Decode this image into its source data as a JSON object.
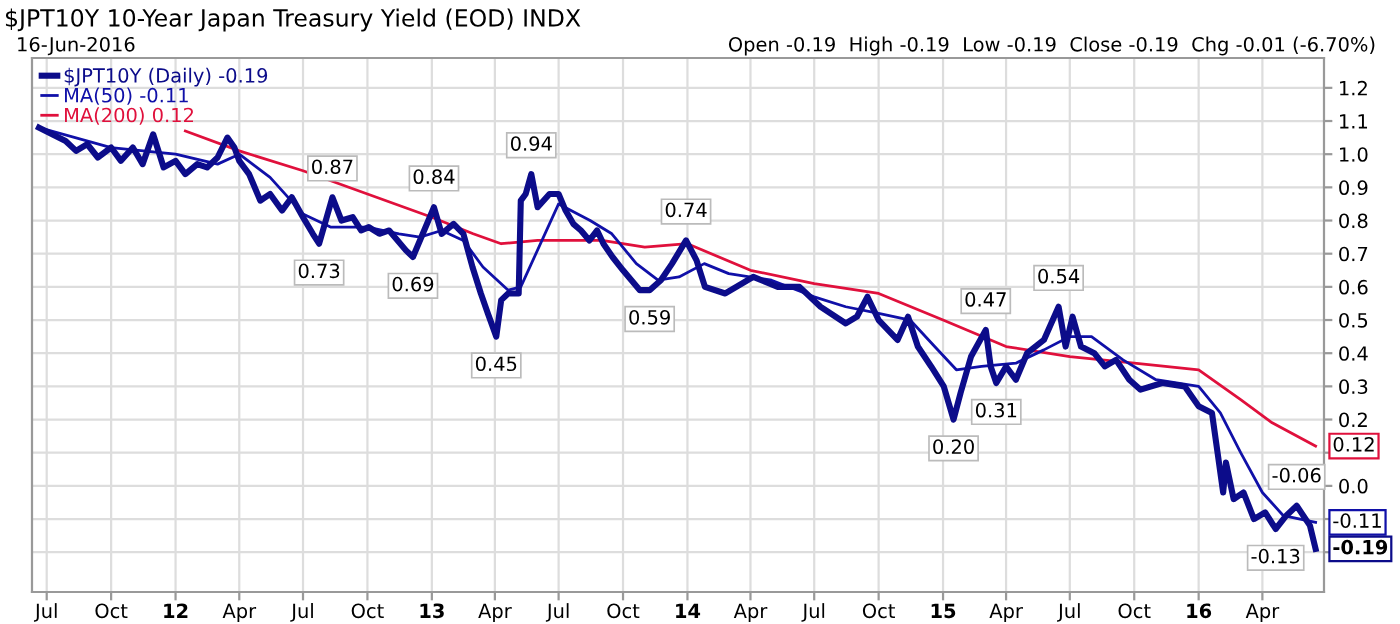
{
  "chart_data": {
    "type": "line",
    "title": "$JPT10Y 10-Year Japan Treasury Yield (EOD) INDX",
    "subtitle": "16-Jun-2016",
    "annotations": [
      "Open -0.19  High -0.19  Low -0.19  Close -0.19  Chg -0.01 (-6.70%)",
      {
        "text": "0.73",
        "x": "2012-07-24",
        "y": 0.73
      },
      {
        "text": "0.87",
        "x": "2012-08-12",
        "y": 0.87
      },
      {
        "text": "0.69",
        "x": "2012-12-05",
        "y": 0.69
      },
      {
        "text": "0.84",
        "x": "2013-01-04",
        "y": 0.84
      },
      {
        "text": "0.45",
        "x": "2013-04-03",
        "y": 0.45
      },
      {
        "text": "0.94",
        "x": "2013-05-23",
        "y": 0.94
      },
      {
        "text": "0.59",
        "x": "2013-11-08",
        "y": 0.59
      },
      {
        "text": "0.74",
        "x": "2013-12-30",
        "y": 0.74
      },
      {
        "text": "0.20",
        "x": "2015-01-16",
        "y": 0.2
      },
      {
        "text": "0.47",
        "x": "2015-03-03",
        "y": 0.47
      },
      {
        "text": "0.31",
        "x": "2015-03-18",
        "y": 0.31
      },
      {
        "text": "0.54",
        "x": "2015-06-15",
        "y": 0.54
      },
      {
        "text": "-0.13",
        "x": "2016-04-20",
        "y": -0.13
      },
      {
        "text": "-0.06",
        "x": "2016-05-20",
        "y": -0.06
      },
      {
        "text": "0.12",
        "x": "2016-06-16",
        "y": 0.12
      },
      {
        "text": "-0.11",
        "x": "2016-06-16",
        "y": -0.11
      },
      {
        "text": "-0.19",
        "x": "2016-06-16",
        "y": -0.19
      }
    ],
    "series": [
      {
        "name": "$JPT10Y (Daily) -0.19",
        "color": "#0c0c8a",
        "x": [
          "2011-06-20",
          "2011-07-28",
          "2011-08-12",
          "2011-08-28",
          "2011-09-12",
          "2011-10-01",
          "2011-10-15",
          "2011-11-01",
          "2011-11-15",
          "2011-11-30",
          "2011-12-15",
          "2012-01-01",
          "2012-01-15",
          "2012-02-01",
          "2012-02-15",
          "2012-03-01",
          "2012-03-15",
          "2012-03-25",
          "2012-04-01",
          "2012-04-15",
          "2012-05-01",
          "2012-05-15",
          "2012-06-01",
          "2012-06-15",
          "2012-07-01",
          "2012-07-15",
          "2012-07-24",
          "2012-08-12",
          "2012-08-25",
          "2012-09-10",
          "2012-09-22",
          "2012-10-03",
          "2012-10-18",
          "2012-11-01",
          "2012-11-25",
          "2012-12-05",
          "2013-01-04",
          "2013-01-15",
          "2013-02-01",
          "2013-02-15",
          "2013-02-28",
          "2013-03-12",
          "2013-03-22",
          "2013-04-03",
          "2013-04-10",
          "2013-04-20",
          "2013-05-05",
          "2013-05-08",
          "2013-05-15",
          "2013-05-23",
          "2013-06-01",
          "2013-06-18",
          "2013-07-01",
          "2013-07-11",
          "2013-07-22",
          "2013-08-02",
          "2013-08-14",
          "2013-08-25",
          "2013-09-03",
          "2013-09-16",
          "2013-10-01",
          "2013-10-13",
          "2013-10-25",
          "2013-11-08",
          "2013-11-24",
          "2013-12-10",
          "2013-12-30",
          "2014-01-14",
          "2014-01-26",
          "2014-02-24",
          "2014-04-05",
          "2014-05-10",
          "2014-06-10",
          "2014-07-10",
          "2014-08-15",
          "2014-08-31",
          "2014-09-15",
          "2014-10-01",
          "2014-10-28",
          "2014-11-12",
          "2014-11-26",
          "2014-12-15",
          "2015-01-02",
          "2015-01-16",
          "2015-01-26",
          "2015-02-10",
          "2015-03-03",
          "2015-03-10",
          "2015-03-18",
          "2015-04-01",
          "2015-04-15",
          "2015-05-01",
          "2015-05-25",
          "2015-06-15",
          "2015-06-25",
          "2015-07-05",
          "2015-07-17",
          "2015-08-05",
          "2015-08-20",
          "2015-09-05",
          "2015-09-24",
          "2015-10-10",
          "2015-11-10",
          "2015-12-12",
          "2016-01-01",
          "2016-01-20",
          "2016-01-28",
          "2016-02-05",
          "2016-02-09",
          "2016-02-20",
          "2016-03-05",
          "2016-03-20",
          "2016-04-05",
          "2016-04-20",
          "2016-05-05",
          "2016-05-20",
          "2016-06-08",
          "2016-06-16"
        ],
        "values": [
          1.08,
          1.04,
          1.01,
          1.03,
          0.99,
          1.02,
          0.98,
          1.02,
          0.97,
          1.06,
          0.96,
          0.98,
          0.94,
          0.97,
          0.96,
          0.99,
          1.05,
          1.02,
          0.98,
          0.94,
          0.86,
          0.88,
          0.83,
          0.87,
          0.81,
          0.76,
          0.73,
          0.87,
          0.8,
          0.81,
          0.77,
          0.78,
          0.76,
          0.77,
          0.71,
          0.69,
          0.84,
          0.76,
          0.79,
          0.76,
          0.66,
          0.58,
          0.52,
          0.45,
          0.56,
          0.58,
          0.58,
          0.86,
          0.88,
          0.94,
          0.84,
          0.88,
          0.88,
          0.83,
          0.79,
          0.77,
          0.74,
          0.77,
          0.73,
          0.69,
          0.65,
          0.62,
          0.59,
          0.59,
          0.62,
          0.67,
          0.74,
          0.68,
          0.6,
          0.58,
          0.63,
          0.6,
          0.6,
          0.54,
          0.49,
          0.51,
          0.57,
          0.5,
          0.44,
          0.51,
          0.42,
          0.36,
          0.3,
          0.2,
          0.28,
          0.39,
          0.47,
          0.36,
          0.31,
          0.36,
          0.32,
          0.4,
          0.44,
          0.54,
          0.42,
          0.51,
          0.42,
          0.4,
          0.36,
          0.38,
          0.32,
          0.29,
          0.31,
          0.3,
          0.24,
          0.22,
          0.1,
          -0.02,
          0.07,
          -0.04,
          -0.02,
          -0.1,
          -0.08,
          -0.13,
          -0.09,
          -0.06,
          -0.12,
          -0.19
        ]
      },
      {
        "name": "MA(50) -0.11",
        "color": "#1010a8",
        "x": [
          "2011-06-20",
          "2011-10-01",
          "2012-01-01",
          "2012-03-01",
          "2012-04-01",
          "2012-05-15",
          "2012-07-01",
          "2012-08-10",
          "2012-10-01",
          "2012-11-15",
          "2012-12-15",
          "2013-01-15",
          "2013-02-15",
          "2013-03-15",
          "2013-04-20",
          "2013-05-08",
          "2013-07-01",
          "2013-08-15",
          "2013-09-15",
          "2013-10-20",
          "2013-11-20",
          "2013-12-20",
          "2014-01-25",
          "2014-03-01",
          "2014-05-01",
          "2014-07-01",
          "2014-08-15",
          "2014-10-01",
          "2014-11-15",
          "2014-12-20",
          "2015-01-20",
          "2015-02-25",
          "2015-04-15",
          "2015-05-25",
          "2015-07-01",
          "2015-08-01",
          "2015-09-15",
          "2015-11-01",
          "2016-01-01",
          "2016-02-01",
          "2016-03-01",
          "2016-04-01",
          "2016-05-01",
          "2016-06-16"
        ],
        "values": [
          1.08,
          1.02,
          1.0,
          0.97,
          1.0,
          0.93,
          0.82,
          0.78,
          0.78,
          0.76,
          0.75,
          0.77,
          0.74,
          0.66,
          0.59,
          0.6,
          0.85,
          0.8,
          0.76,
          0.67,
          0.62,
          0.63,
          0.67,
          0.64,
          0.62,
          0.57,
          0.54,
          0.52,
          0.5,
          0.42,
          0.35,
          0.36,
          0.37,
          0.41,
          0.45,
          0.45,
          0.38,
          0.32,
          0.3,
          0.22,
          0.1,
          -0.02,
          -0.09,
          -0.11
        ]
      },
      {
        "name": "MA(200) 0.12",
        "color": "#e0103c",
        "x": [
          "2012-01-15",
          "2012-04-01",
          "2012-07-01",
          "2012-10-01",
          "2013-01-01",
          "2013-03-01",
          "2013-04-10",
          "2013-06-01",
          "2013-09-01",
          "2013-11-01",
          "2014-01-01",
          "2014-04-01",
          "2014-07-01",
          "2014-10-01",
          "2015-01-01",
          "2015-04-01",
          "2015-07-01",
          "2015-10-01",
          "2016-01-01",
          "2016-03-01",
          "2016-04-15",
          "2016-06-16"
        ],
        "values": [
          1.07,
          1.01,
          0.95,
          0.88,
          0.81,
          0.76,
          0.73,
          0.74,
          0.74,
          0.72,
          0.73,
          0.65,
          0.61,
          0.58,
          0.5,
          0.42,
          0.39,
          0.37,
          0.35,
          0.26,
          0.19,
          0.12
        ]
      }
    ],
    "xlim": [
      "2011-06-10",
      "2016-06-28"
    ],
    "xticks": [
      {
        "value": "2011-07-01",
        "label": "Jul"
      },
      {
        "value": "2011-10-01",
        "label": "Oct"
      },
      {
        "value": "2012-01-01",
        "label": "12"
      },
      {
        "value": "2012-04-01",
        "label": "Apr"
      },
      {
        "value": "2012-07-01",
        "label": "Jul"
      },
      {
        "value": "2012-10-01",
        "label": "Oct"
      },
      {
        "value": "2013-01-01",
        "label": "13"
      },
      {
        "value": "2013-04-01",
        "label": "Apr"
      },
      {
        "value": "2013-07-01",
        "label": "Jul"
      },
      {
        "value": "2013-10-01",
        "label": "Oct"
      },
      {
        "value": "2014-01-01",
        "label": "14"
      },
      {
        "value": "2014-04-01",
        "label": "Apr"
      },
      {
        "value": "2014-07-01",
        "label": "Jul"
      },
      {
        "value": "2014-10-01",
        "label": "Oct"
      },
      {
        "value": "2015-01-01",
        "label": "15"
      },
      {
        "value": "2015-04-01",
        "label": "Apr"
      },
      {
        "value": "2015-07-01",
        "label": "Jul"
      },
      {
        "value": "2015-10-01",
        "label": "Oct"
      },
      {
        "value": "2016-01-01",
        "label": "16"
      },
      {
        "value": "2016-04-01",
        "label": "Apr"
      }
    ],
    "ylim": [
      -0.32,
      1.29
    ],
    "yticks": [
      {
        "value": -0.2,
        "label": null
      },
      {
        "value": -0.1,
        "label": null
      },
      {
        "value": 0.0,
        "label": "0.0"
      },
      {
        "value": 0.1,
        "label": null
      },
      {
        "value": 0.2,
        "label": "0.2"
      },
      {
        "value": 0.3,
        "label": "0.3"
      },
      {
        "value": 0.4,
        "label": "0.4"
      },
      {
        "value": 0.5,
        "label": "0.5"
      },
      {
        "value": 0.6,
        "label": "0.6"
      },
      {
        "value": 0.7,
        "label": "0.7"
      },
      {
        "value": 0.8,
        "label": "0.8"
      },
      {
        "value": 0.9,
        "label": "0.9"
      },
      {
        "value": 1.0,
        "label": "1.0"
      },
      {
        "value": 1.1,
        "label": "1.1"
      },
      {
        "value": 1.2,
        "label": "1.2"
      }
    ],
    "grid": true,
    "legend": "top left"
  }
}
